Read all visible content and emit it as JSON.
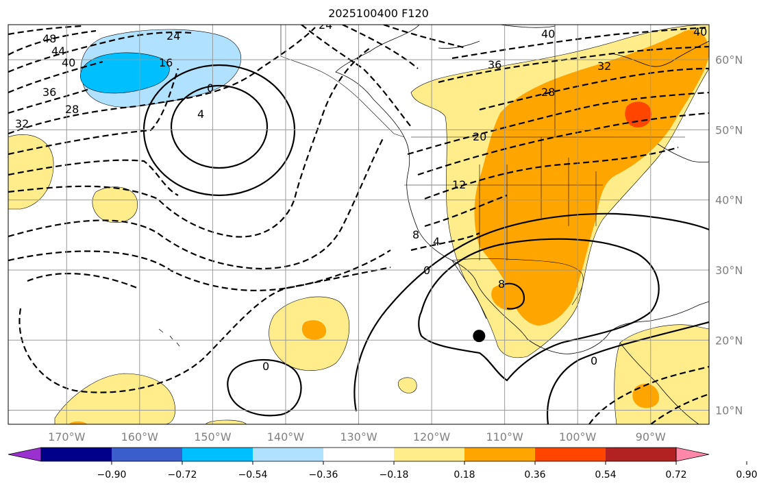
{
  "title": "2025100400 F120",
  "map": {
    "projection": "plate-carree",
    "lon_range": [
      -178,
      -82
    ],
    "lat_range": [
      8,
      65
    ],
    "lon_ticks": [
      {
        "value": -170,
        "label": "170°W"
      },
      {
        "value": -160,
        "label": "160°W"
      },
      {
        "value": -150,
        "label": "150°W"
      },
      {
        "value": -140,
        "label": "140°W"
      },
      {
        "value": -130,
        "label": "130°W"
      },
      {
        "value": -120,
        "label": "120°W"
      },
      {
        "value": -110,
        "label": "110°W"
      },
      {
        "value": -100,
        "label": "100°W"
      },
      {
        "value": -90,
        "label": "90°W"
      }
    ],
    "lat_ticks": [
      {
        "value": 10,
        "label": "10°N"
      },
      {
        "value": 20,
        "label": "20°N"
      },
      {
        "value": 30,
        "label": "30°N"
      },
      {
        "value": 40,
        "label": "40°N"
      },
      {
        "value": 50,
        "label": "50°N"
      },
      {
        "value": 60,
        "label": "60°N"
      }
    ],
    "gridlines": true,
    "marker": {
      "lon": -113.5,
      "lat": 20.6,
      "color": "#000000"
    },
    "contour_labels": [
      "48",
      "44",
      "40",
      "36",
      "32",
      "28",
      "24",
      "16",
      "0",
      "4",
      "24",
      "40",
      "36",
      "32",
      "28",
      "20",
      "12",
      "8",
      "4",
      "0",
      "8",
      "0",
      "0",
      "40"
    ]
  },
  "colorbar": {
    "tick_labels": [
      "−0.90",
      "−0.72",
      "−0.54",
      "−0.36",
      "−0.18",
      "0.18",
      "0.36",
      "0.54",
      "0.72",
      "0.90"
    ],
    "colors": [
      "#9b30d0",
      "#00008b",
      "#3a5fcd",
      "#00bfff",
      "#b0e2ff",
      "#ffffff",
      "#ffec8b",
      "#ffa500",
      "#ff4500",
      "#b22222",
      "#ff88aa"
    ],
    "extend": "both"
  }
}
